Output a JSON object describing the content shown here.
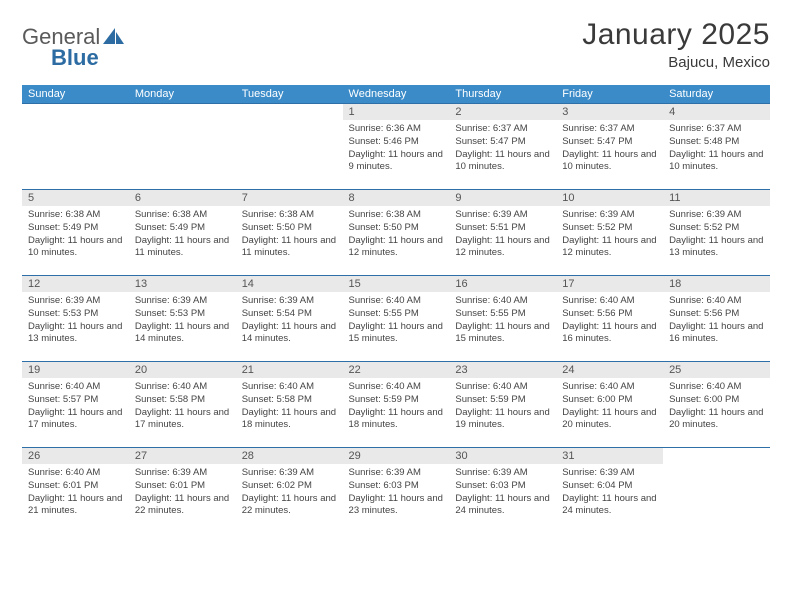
{
  "logo": {
    "text1": "General",
    "text2": "Blue"
  },
  "title": "January 2025",
  "location": "Bajucu, Mexico",
  "colors": {
    "header_bg": "#3b8bc8",
    "header_text": "#ffffff",
    "row_border": "#2f6fa8",
    "daynum_bg": "#e9e9e9",
    "logo_gray": "#5a5a5a",
    "logo_blue": "#2d6ca2"
  },
  "weekdays": [
    "Sunday",
    "Monday",
    "Tuesday",
    "Wednesday",
    "Thursday",
    "Friday",
    "Saturday"
  ],
  "weeks": [
    [
      null,
      null,
      null,
      {
        "n": "1",
        "sr": "6:36 AM",
        "ss": "5:46 PM",
        "dl": "11 hours and 9 minutes."
      },
      {
        "n": "2",
        "sr": "6:37 AM",
        "ss": "5:47 PM",
        "dl": "11 hours and 10 minutes."
      },
      {
        "n": "3",
        "sr": "6:37 AM",
        "ss": "5:47 PM",
        "dl": "11 hours and 10 minutes."
      },
      {
        "n": "4",
        "sr": "6:37 AM",
        "ss": "5:48 PM",
        "dl": "11 hours and 10 minutes."
      }
    ],
    [
      {
        "n": "5",
        "sr": "6:38 AM",
        "ss": "5:49 PM",
        "dl": "11 hours and 10 minutes."
      },
      {
        "n": "6",
        "sr": "6:38 AM",
        "ss": "5:49 PM",
        "dl": "11 hours and 11 minutes."
      },
      {
        "n": "7",
        "sr": "6:38 AM",
        "ss": "5:50 PM",
        "dl": "11 hours and 11 minutes."
      },
      {
        "n": "8",
        "sr": "6:38 AM",
        "ss": "5:50 PM",
        "dl": "11 hours and 12 minutes."
      },
      {
        "n": "9",
        "sr": "6:39 AM",
        "ss": "5:51 PM",
        "dl": "11 hours and 12 minutes."
      },
      {
        "n": "10",
        "sr": "6:39 AM",
        "ss": "5:52 PM",
        "dl": "11 hours and 12 minutes."
      },
      {
        "n": "11",
        "sr": "6:39 AM",
        "ss": "5:52 PM",
        "dl": "11 hours and 13 minutes."
      }
    ],
    [
      {
        "n": "12",
        "sr": "6:39 AM",
        "ss": "5:53 PM",
        "dl": "11 hours and 13 minutes."
      },
      {
        "n": "13",
        "sr": "6:39 AM",
        "ss": "5:53 PM",
        "dl": "11 hours and 14 minutes."
      },
      {
        "n": "14",
        "sr": "6:39 AM",
        "ss": "5:54 PM",
        "dl": "11 hours and 14 minutes."
      },
      {
        "n": "15",
        "sr": "6:40 AM",
        "ss": "5:55 PM",
        "dl": "11 hours and 15 minutes."
      },
      {
        "n": "16",
        "sr": "6:40 AM",
        "ss": "5:55 PM",
        "dl": "11 hours and 15 minutes."
      },
      {
        "n": "17",
        "sr": "6:40 AM",
        "ss": "5:56 PM",
        "dl": "11 hours and 16 minutes."
      },
      {
        "n": "18",
        "sr": "6:40 AM",
        "ss": "5:56 PM",
        "dl": "11 hours and 16 minutes."
      }
    ],
    [
      {
        "n": "19",
        "sr": "6:40 AM",
        "ss": "5:57 PM",
        "dl": "11 hours and 17 minutes."
      },
      {
        "n": "20",
        "sr": "6:40 AM",
        "ss": "5:58 PM",
        "dl": "11 hours and 17 minutes."
      },
      {
        "n": "21",
        "sr": "6:40 AM",
        "ss": "5:58 PM",
        "dl": "11 hours and 18 minutes."
      },
      {
        "n": "22",
        "sr": "6:40 AM",
        "ss": "5:59 PM",
        "dl": "11 hours and 18 minutes."
      },
      {
        "n": "23",
        "sr": "6:40 AM",
        "ss": "5:59 PM",
        "dl": "11 hours and 19 minutes."
      },
      {
        "n": "24",
        "sr": "6:40 AM",
        "ss": "6:00 PM",
        "dl": "11 hours and 20 minutes."
      },
      {
        "n": "25",
        "sr": "6:40 AM",
        "ss": "6:00 PM",
        "dl": "11 hours and 20 minutes."
      }
    ],
    [
      {
        "n": "26",
        "sr": "6:40 AM",
        "ss": "6:01 PM",
        "dl": "11 hours and 21 minutes."
      },
      {
        "n": "27",
        "sr": "6:39 AM",
        "ss": "6:01 PM",
        "dl": "11 hours and 22 minutes."
      },
      {
        "n": "28",
        "sr": "6:39 AM",
        "ss": "6:02 PM",
        "dl": "11 hours and 22 minutes."
      },
      {
        "n": "29",
        "sr": "6:39 AM",
        "ss": "6:03 PM",
        "dl": "11 hours and 23 minutes."
      },
      {
        "n": "30",
        "sr": "6:39 AM",
        "ss": "6:03 PM",
        "dl": "11 hours and 24 minutes."
      },
      {
        "n": "31",
        "sr": "6:39 AM",
        "ss": "6:04 PM",
        "dl": "11 hours and 24 minutes."
      },
      null
    ]
  ],
  "labels": {
    "sunrise": "Sunrise: ",
    "sunset": "Sunset: ",
    "daylight": "Daylight: "
  }
}
